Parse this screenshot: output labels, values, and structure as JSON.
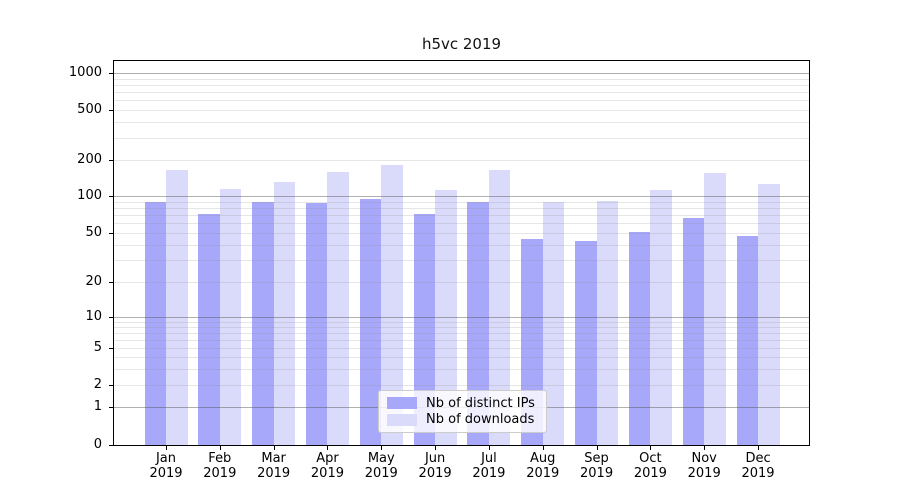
{
  "title": "h5vc 2019",
  "chart_data": {
    "type": "bar",
    "title": "h5vc 2019",
    "categories": [
      "Jan",
      "Feb",
      "Mar",
      "Apr",
      "May",
      "Jun",
      "Jul",
      "Aug",
      "Sep",
      "Oct",
      "Nov",
      "Dec"
    ],
    "year": "2019",
    "series": [
      {
        "name": "Nb of distinct IPs",
        "color": "#a8a8fa",
        "values": [
          90,
          72,
          90,
          87,
          95,
          72,
          90,
          45,
          43,
          51,
          66,
          47
        ]
      },
      {
        "name": "Nb of downloads",
        "color": "#dadafa",
        "values": [
          165,
          114,
          132,
          160,
          180,
          112,
          165,
          89,
          91,
          113,
          157,
          125
        ]
      }
    ],
    "yscale": "symlog",
    "yticks": [
      0,
      1,
      2,
      5,
      10,
      20,
      50,
      100,
      200,
      500,
      1000
    ],
    "ylim": [
      0,
      1250
    ],
    "grid": true,
    "legend_position": "lower center",
    "colors": {
      "major_gridline": "#bababa",
      "minor_gridline": "#e8e8e8",
      "axis": "#000000"
    }
  },
  "legend": {
    "items": [
      {
        "label": "Nb of distinct IPs",
        "color": "#a8a8fa"
      },
      {
        "label": "Nb of downloads",
        "color": "#dadafa"
      }
    ]
  }
}
